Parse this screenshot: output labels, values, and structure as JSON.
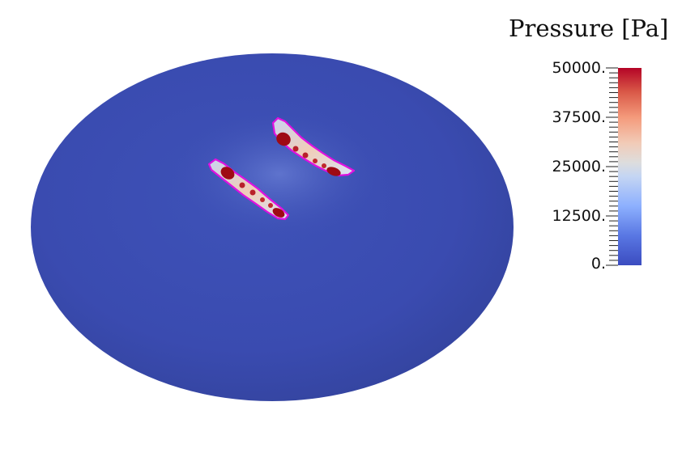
{
  "legend": {
    "title": "Pressure [Pa]",
    "ticks": [
      "50000.",
      "37500.",
      "25000.",
      "12500.",
      "0."
    ],
    "range": [
      0,
      50000
    ],
    "colormap": [
      "#3b4cc0",
      "#6f91f2",
      "#aac7fd",
      "#dddddd",
      "#f6b79b",
      "#e5765a",
      "#c0282c",
      "#b40426"
    ]
  },
  "colors": {
    "disk": "#3a4bb0",
    "outline": "#e010e0",
    "hotspot": "#9e0a14"
  }
}
